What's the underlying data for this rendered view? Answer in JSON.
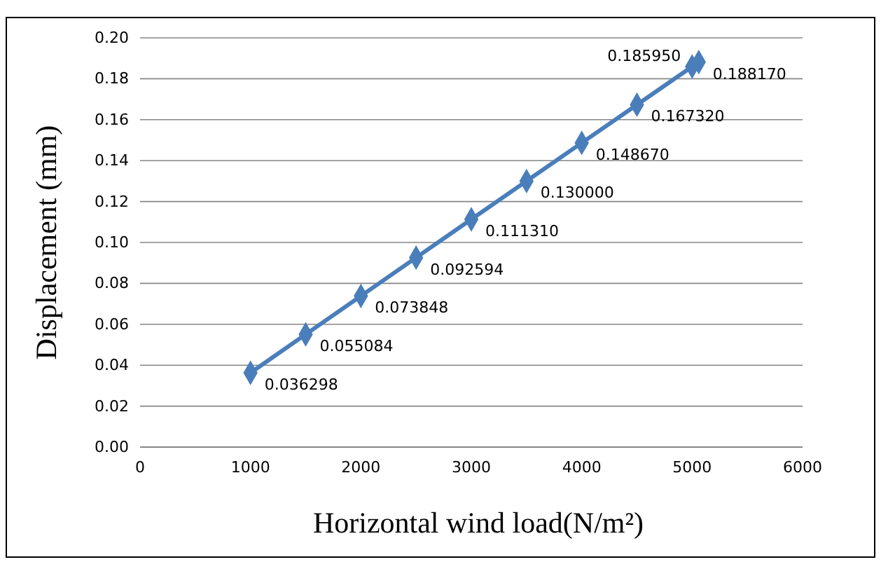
{
  "chart_data": {
    "type": "line",
    "xlabel": "Horizontal wind load(N/m²)",
    "ylabel": "Displacement (mm)",
    "x": [
      1000,
      1500,
      2000,
      2500,
      3000,
      3500,
      4000,
      4500,
      5000,
      5060
    ],
    "series": [
      {
        "color": "#4a7ebb",
        "values": [
          0.036298,
          0.055084,
          0.073848,
          0.092594,
          0.11131,
          0.13,
          0.14867,
          0.16732,
          0.18595,
          0.18817
        ],
        "value_labels": [
          "0.036298",
          "0.055084",
          "0.073848",
          "0.092594",
          "0.111310",
          "0.130000",
          "0.148670",
          "0.167320",
          "0.185950",
          "0.188170"
        ]
      }
    ],
    "xlim": [
      0,
      6000
    ],
    "xticks": [
      0,
      1000,
      2000,
      3000,
      4000,
      5000,
      6000
    ],
    "ylim": [
      0,
      0.2
    ],
    "yticks": [
      {
        "value": 0,
        "label": "0.00"
      },
      {
        "value": 0.02,
        "label": "0.02"
      },
      {
        "value": 0.04,
        "label": "0.04"
      },
      {
        "value": 0.06,
        "label": "0.06"
      },
      {
        "value": 0.08,
        "label": "0.08"
      },
      {
        "value": 0.1,
        "label": "0.10"
      },
      {
        "value": 0.12,
        "label": "0.12"
      },
      {
        "value": 0.14,
        "label": "0.14"
      },
      {
        "value": 0.16,
        "label": "0.16"
      },
      {
        "value": 0.18,
        "label": "0.18"
      },
      {
        "value": 0.2,
        "label": "0.20"
      }
    ],
    "grid": "y",
    "marker": "diamond",
    "line_style": "solid"
  }
}
